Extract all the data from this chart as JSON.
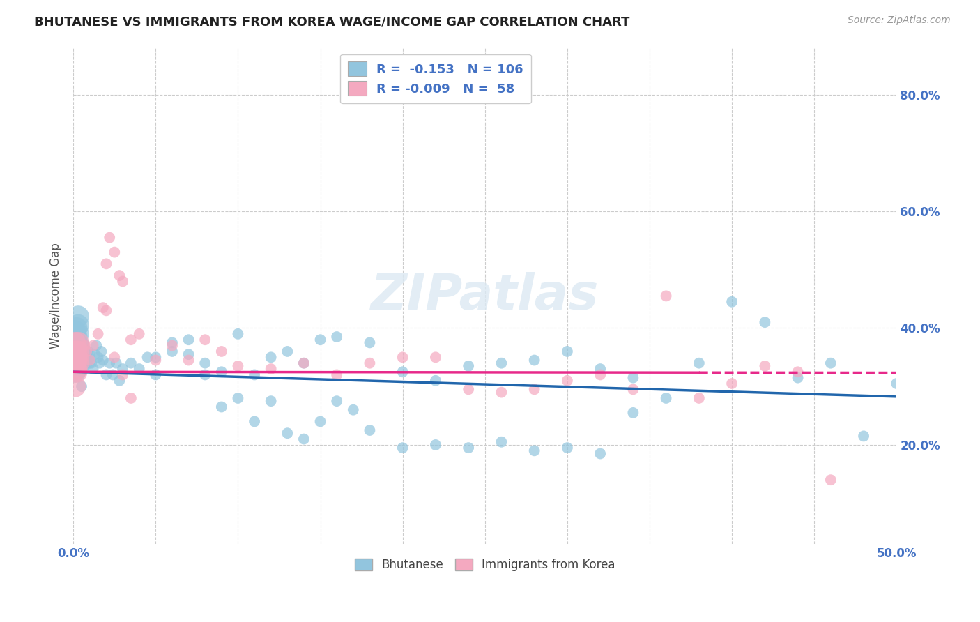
{
  "title": "BHUTANESE VS IMMIGRANTS FROM KOREA WAGE/INCOME GAP CORRELATION CHART",
  "source": "Source: ZipAtlas.com",
  "ylabel": "Wage/Income Gap",
  "yticks": [
    "20.0%",
    "40.0%",
    "60.0%",
    "80.0%"
  ],
  "ytick_vals": [
    0.2,
    0.4,
    0.6,
    0.8
  ],
  "xmin": 0.0,
  "xmax": 0.5,
  "ymin": 0.03,
  "ymax": 0.88,
  "blue_color": "#92c5de",
  "pink_color": "#f4a9c0",
  "blue_line_color": "#2166ac",
  "pink_line_color": "#e7298a",
  "axis_label_color": "#4472c4",
  "bhutanese_x": [
    0.001,
    0.001,
    0.001,
    0.001,
    0.001,
    0.002,
    0.002,
    0.002,
    0.002,
    0.002,
    0.002,
    0.002,
    0.003,
    0.003,
    0.003,
    0.003,
    0.003,
    0.003,
    0.004,
    0.004,
    0.004,
    0.004,
    0.005,
    0.005,
    0.005,
    0.005,
    0.006,
    0.006,
    0.006,
    0.007,
    0.007,
    0.007,
    0.008,
    0.008,
    0.009,
    0.009,
    0.01,
    0.01,
    0.011,
    0.012,
    0.013,
    0.014,
    0.015,
    0.016,
    0.017,
    0.018,
    0.02,
    0.022,
    0.024,
    0.026,
    0.028,
    0.03,
    0.035,
    0.04,
    0.045,
    0.05,
    0.06,
    0.07,
    0.08,
    0.09,
    0.1,
    0.11,
    0.12,
    0.13,
    0.14,
    0.15,
    0.16,
    0.18,
    0.2,
    0.22,
    0.24,
    0.26,
    0.28,
    0.3,
    0.32,
    0.34,
    0.36,
    0.38,
    0.4,
    0.42,
    0.44,
    0.46,
    0.48,
    0.5,
    0.05,
    0.06,
    0.07,
    0.08,
    0.09,
    0.1,
    0.11,
    0.12,
    0.13,
    0.14,
    0.15,
    0.16,
    0.17,
    0.18,
    0.2,
    0.22,
    0.24,
    0.26,
    0.28,
    0.3,
    0.32,
    0.34
  ],
  "bhutanese_y": [
    0.345,
    0.37,
    0.38,
    0.395,
    0.325,
    0.33,
    0.345,
    0.37,
    0.385,
    0.4,
    0.35,
    0.36,
    0.34,
    0.355,
    0.37,
    0.39,
    0.405,
    0.42,
    0.335,
    0.35,
    0.365,
    0.38,
    0.34,
    0.355,
    0.37,
    0.3,
    0.345,
    0.36,
    0.375,
    0.335,
    0.35,
    0.365,
    0.34,
    0.355,
    0.345,
    0.36,
    0.34,
    0.355,
    0.34,
    0.33,
    0.355,
    0.37,
    0.35,
    0.34,
    0.36,
    0.345,
    0.32,
    0.34,
    0.32,
    0.34,
    0.31,
    0.33,
    0.34,
    0.33,
    0.35,
    0.32,
    0.375,
    0.355,
    0.34,
    0.325,
    0.39,
    0.32,
    0.35,
    0.36,
    0.34,
    0.38,
    0.385,
    0.375,
    0.325,
    0.31,
    0.335,
    0.34,
    0.345,
    0.36,
    0.33,
    0.315,
    0.28,
    0.34,
    0.445,
    0.41,
    0.315,
    0.34,
    0.215,
    0.305,
    0.35,
    0.36,
    0.38,
    0.32,
    0.265,
    0.28,
    0.24,
    0.275,
    0.22,
    0.21,
    0.24,
    0.275,
    0.26,
    0.225,
    0.195,
    0.2,
    0.195,
    0.205,
    0.19,
    0.195,
    0.185,
    0.255
  ],
  "korea_x": [
    0.001,
    0.001,
    0.001,
    0.001,
    0.001,
    0.002,
    0.002,
    0.002,
    0.002,
    0.003,
    0.003,
    0.003,
    0.004,
    0.004,
    0.005,
    0.005,
    0.006,
    0.007,
    0.008,
    0.01,
    0.012,
    0.015,
    0.018,
    0.02,
    0.022,
    0.025,
    0.028,
    0.03,
    0.035,
    0.04,
    0.05,
    0.06,
    0.07,
    0.08,
    0.09,
    0.1,
    0.12,
    0.14,
    0.16,
    0.18,
    0.2,
    0.22,
    0.24,
    0.26,
    0.28,
    0.3,
    0.32,
    0.34,
    0.36,
    0.38,
    0.4,
    0.42,
    0.44,
    0.46,
    0.02,
    0.025,
    0.03,
    0.035
  ],
  "korea_y": [
    0.34,
    0.355,
    0.36,
    0.375,
    0.3,
    0.33,
    0.345,
    0.36,
    0.325,
    0.34,
    0.36,
    0.375,
    0.34,
    0.355,
    0.34,
    0.355,
    0.35,
    0.37,
    0.36,
    0.345,
    0.37,
    0.39,
    0.435,
    0.51,
    0.555,
    0.53,
    0.49,
    0.48,
    0.38,
    0.39,
    0.345,
    0.37,
    0.345,
    0.38,
    0.36,
    0.335,
    0.33,
    0.34,
    0.32,
    0.34,
    0.35,
    0.35,
    0.295,
    0.29,
    0.295,
    0.31,
    0.32,
    0.295,
    0.455,
    0.28,
    0.305,
    0.335,
    0.325,
    0.14,
    0.43,
    0.35,
    0.32,
    0.28
  ],
  "blue_intercept": 0.325,
  "blue_slope": -0.085,
  "pink_intercept": 0.325,
  "pink_slope": -0.003
}
